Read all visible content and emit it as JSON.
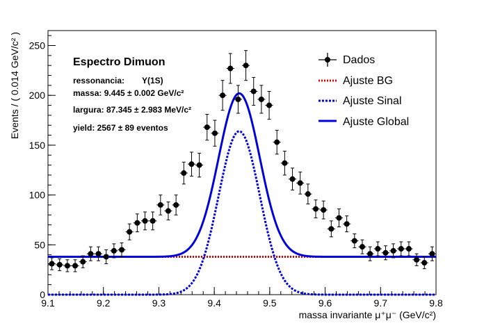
{
  "chart_data": {
    "type": "scatter",
    "xlabel": "massa invariante μ⁺μ⁻ (GeV/c²)",
    "ylabel": "Events / ( 0.014 GeV/c² )",
    "xlim": [
      9.1,
      9.8
    ],
    "ylim": [
      0,
      265
    ],
    "x_ticks": [
      "9.1",
      "9.2",
      "9.3",
      "9.4",
      "9.5",
      "9.6",
      "9.7",
      "9.8"
    ],
    "y_ticks": [
      "0",
      "50",
      "100",
      "150",
      "200",
      "250"
    ],
    "grid": false,
    "legend_position": "top-right",
    "colors": {
      "data": "#000000",
      "bg": "#dd0000",
      "signal": "#0000dd",
      "global": "#0000dd"
    },
    "annotations": {
      "title": "Espectro Dimuon",
      "resonance_label": "ressonancia:",
      "resonance_value": "Υ(1S)",
      "mass": "massa: 9.445 ± 0.002 GeV/c²",
      "width": "largura: 87.345 ± 2.983 MeV/c²",
      "yield": "yield: 2567 ± 89 eventos"
    },
    "legend": [
      "Dados",
      "Ajuste BG",
      "Ajuste Sinal",
      "Ajuste Global"
    ],
    "bin_half_width": 0.007,
    "data_points": {
      "x": [
        9.107,
        9.121,
        9.135,
        9.149,
        9.163,
        9.177,
        9.191,
        9.205,
        9.219,
        9.233,
        9.247,
        9.261,
        9.275,
        9.289,
        9.303,
        9.317,
        9.331,
        9.345,
        9.359,
        9.373,
        9.387,
        9.401,
        9.415,
        9.429,
        9.443,
        9.457,
        9.471,
        9.485,
        9.499,
        9.513,
        9.527,
        9.541,
        9.555,
        9.569,
        9.583,
        9.597,
        9.611,
        9.625,
        9.639,
        9.653,
        9.667,
        9.681,
        9.695,
        9.709,
        9.723,
        9.737,
        9.751,
        9.765,
        9.779,
        9.793
      ],
      "y": [
        31,
        30,
        29,
        29,
        33,
        41,
        41,
        38,
        44,
        45,
        63,
        72,
        74,
        74,
        90,
        84,
        90,
        122,
        131,
        130,
        168,
        162,
        200,
        227,
        196,
        230,
        204,
        196,
        190,
        153,
        132,
        116,
        112,
        101,
        86,
        85,
        66,
        77,
        71,
        54,
        48,
        41,
        46,
        42,
        44,
        46,
        46,
        35,
        32,
        41
      ],
      "err": [
        6,
        6,
        6,
        6,
        6,
        7,
        7,
        7,
        7,
        7,
        8,
        9,
        9,
        9,
        10,
        9,
        10,
        11,
        12,
        12,
        13,
        13,
        15,
        15,
        14,
        15,
        14,
        14,
        14,
        12,
        12,
        11,
        11,
        10,
        9,
        9,
        8,
        9,
        8,
        7,
        7,
        7,
        7,
        7,
        7,
        7,
        7,
        6,
        6,
        7
      ]
    },
    "fit_parameters": {
      "mean": 9.445,
      "sigma_signal": 0.0371,
      "signal_peak": 164,
      "background_level": 38
    }
  }
}
